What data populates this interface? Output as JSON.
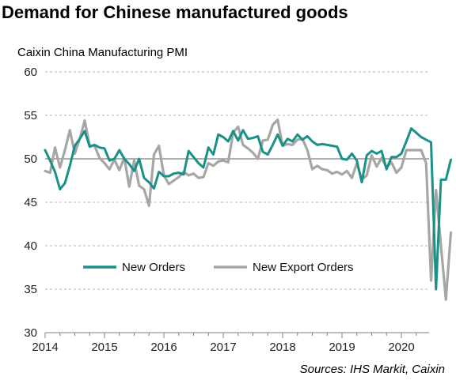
{
  "header": {
    "title": "Demand for Chinese manufactured goods",
    "subtitle": "Caixin China Manufacturing PMI",
    "source": "Sources: IHS Markit, Caixin"
  },
  "colors": {
    "new_orders": "#1a9187",
    "new_export_orders": "#a6a6a6",
    "gridline": "#b5b5b5",
    "reference_line": "#7f7f7f"
  },
  "chart_data": {
    "type": "line",
    "xlabel": "",
    "ylabel": "",
    "ylim": [
      30,
      60
    ],
    "yticks": [
      "30",
      "35",
      "40",
      "45",
      "50",
      "55",
      "60"
    ],
    "xticks": [
      "2014",
      "2015",
      "2016",
      "2017",
      "2018",
      "2019",
      "2020"
    ],
    "reference_line": 50,
    "grid": "horizontal dashed",
    "legend": {
      "placement": "lower-left, inside plot",
      "entries": [
        "New Orders",
        "New Export Orders"
      ]
    },
    "x_start": "2014-01",
    "frequency": "monthly",
    "series": [
      {
        "name": "New Orders",
        "color": "#1a9187",
        "values": [
          51.0,
          49.8,
          48.5,
          46.5,
          47.2,
          49.2,
          51.5,
          52.3,
          53.2,
          51.4,
          51.6,
          51.3,
          51.2,
          49.8,
          50.0,
          51.0,
          50.0,
          49.4,
          48.6,
          50.0,
          47.8,
          47.3,
          46.6,
          48.5,
          48.0,
          48.0,
          48.3,
          48.4,
          48.2,
          50.9,
          50.2,
          49.5,
          49.0,
          51.3,
          50.5,
          52.8,
          52.5,
          52.0,
          53.2,
          52.1,
          53.3,
          52.3,
          52.4,
          52.6,
          50.8,
          50.5,
          51.6,
          52.8,
          51.5,
          52.3,
          52.0,
          52.8,
          52.2,
          52.6,
          52.0,
          51.6,
          51.7,
          51.6,
          51.5,
          51.4,
          50.0,
          49.9,
          50.6,
          49.8,
          47.3,
          50.4,
          50.9,
          50.6,
          50.9,
          48.8,
          50.2,
          50.2,
          50.6,
          52.0,
          53.5,
          53.0,
          52.5,
          52.2,
          51.9,
          35.0,
          47.6,
          47.6,
          49.9
        ],
        "series_starts": "2014-01"
      },
      {
        "name": "New Export Orders",
        "color": "#a6a6a6",
        "values": [
          48.6,
          48.4,
          51.3,
          49.0,
          51.0,
          53.3,
          50.6,
          52.3,
          54.4,
          51.5,
          51.5,
          50.1,
          49.5,
          48.8,
          49.9,
          48.7,
          50.1,
          46.8,
          49.8,
          46.9,
          46.5,
          44.6,
          50.5,
          51.5,
          48.1,
          47.1,
          47.5,
          47.9,
          48.5,
          48.1,
          48.3,
          47.8,
          47.9,
          49.5,
          49.2,
          49.7,
          49.8,
          49.6,
          53.0,
          53.7,
          51.6,
          51.2,
          50.7,
          50.0,
          52.1,
          52.2,
          53.9,
          54.5,
          51.5,
          51.7,
          51.6,
          52.2,
          52.3,
          51.0,
          48.8,
          49.2,
          48.8,
          48.7,
          48.3,
          48.5,
          48.2,
          48.6,
          47.8,
          49.5,
          47.6,
          48.1,
          50.4,
          49.1,
          50.1,
          49.0,
          49.6,
          48.4,
          49.0,
          51.0,
          51.0,
          51.0,
          51.0,
          49.5,
          36.0,
          46.4,
          40.0,
          33.8,
          41.5
        ],
        "series_starts": "2014-01"
      }
    ]
  }
}
